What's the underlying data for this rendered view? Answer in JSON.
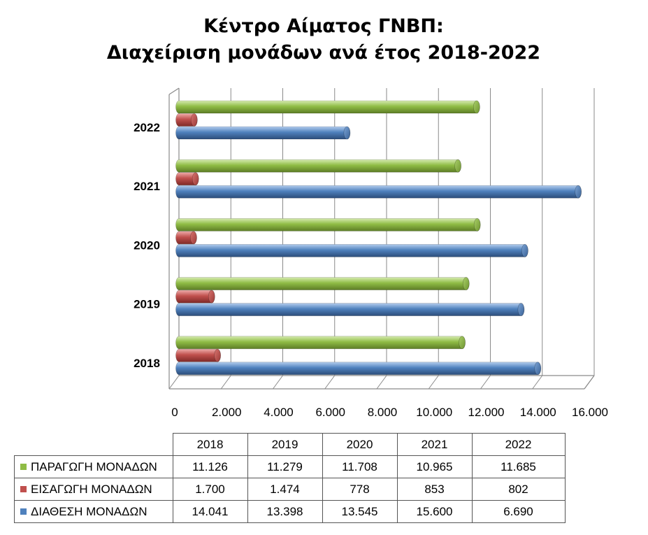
{
  "chart_data": {
    "type": "bar",
    "orientation": "horizontal",
    "title": [
      "Κέντρο Αίματος ΓΝΒΠ:",
      "Διαχείριση μονάδων ανά έτος 2018-2022"
    ],
    "categories": [
      "2018",
      "2019",
      "2020",
      "2021",
      "2022"
    ],
    "series": [
      {
        "name": "ΠΑΡΑΓΩΓΗ ΜΟΝΑΔΩΝ",
        "color": "#8fbc45",
        "values": [
          11126,
          11279,
          11708,
          10965,
          11685
        ],
        "labels": [
          "11.126",
          "11.279",
          "11.708",
          "10.965",
          "11.685"
        ]
      },
      {
        "name": "ΕΙΣΑΓΩΓΗ ΜΟΝΑΔΩΝ",
        "color": "#c0504d",
        "values": [
          1700,
          1474,
          778,
          853,
          802
        ],
        "labels": [
          "1.700",
          "1.474",
          "778",
          "853",
          "802"
        ]
      },
      {
        "name": "ΔΙΑΘΕΣΗ ΜΟΝΑΔΩΝ",
        "color": "#4f81bd",
        "values": [
          14041,
          13398,
          13545,
          15600,
          6690
        ],
        "labels": [
          "14.041",
          "13.398",
          "13.545",
          "15.600",
          "6.690"
        ]
      }
    ],
    "x_ticks": [
      0,
      2000,
      4000,
      6000,
      8000,
      10000,
      12000,
      14000,
      16000
    ],
    "x_tick_labels": [
      "0",
      "2.000",
      "4.000",
      "6.000",
      "8.000",
      "10.000",
      "12.000",
      "14.000",
      "16.000"
    ],
    "xlim": [
      0,
      16000
    ],
    "grid": true,
    "legend": "data-table-below",
    "style": "3d-cylinder"
  }
}
